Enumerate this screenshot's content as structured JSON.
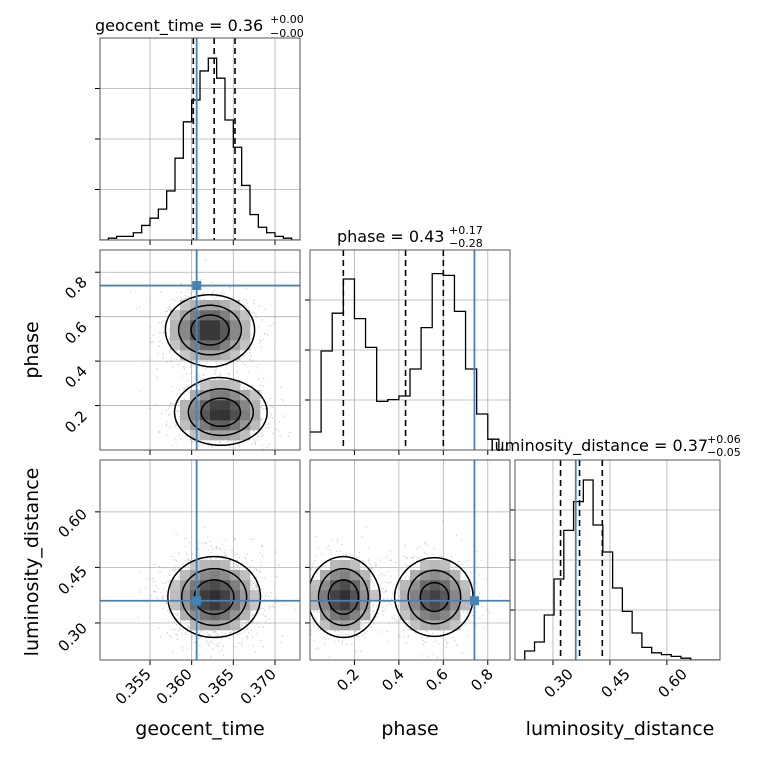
{
  "chart_data": {
    "type": "corner",
    "grid": true,
    "parameters": [
      {
        "name": "geocent_time",
        "title": {
          "main": "geocent_time = 0.36",
          "upper": "+0.00",
          "lower": "−0.00"
        },
        "xlabel": "geocent_time",
        "range": [
          0.349,
          0.373
        ],
        "ticks": [
          "0.355",
          "0.360",
          "0.365",
          "0.370"
        ],
        "tick_values": [
          0.355,
          0.36,
          0.365,
          0.37
        ],
        "median": 0.3627,
        "quantiles": [
          0.3602,
          0.3627,
          0.3652
        ],
        "injection": 0.3606,
        "hist_counts": [
          0.0,
          0.01,
          0.02,
          0.02,
          0.04,
          0.08,
          0.12,
          0.17,
          0.27,
          0.45,
          0.65,
          0.77,
          0.93,
          1.0,
          0.89,
          0.66,
          0.51,
          0.3,
          0.14,
          0.07,
          0.04,
          0.02,
          0.01,
          0.0
        ]
      },
      {
        "name": "phase",
        "title": {
          "main": "phase = 0.43",
          "upper": "+0.17",
          "lower": "−0.28"
        },
        "xlabel": "phase",
        "ylabel": "phase",
        "range": [
          0.0,
          0.9
        ],
        "ticks": [
          "0.2",
          "0.4",
          "0.6",
          "0.8"
        ],
        "tick_values": [
          0.2,
          0.4,
          0.6,
          0.8
        ],
        "median": 0.43,
        "quantiles": [
          0.15,
          0.43,
          0.6
        ],
        "injection": 0.74,
        "hist_counts": [
          0.1,
          0.55,
          0.76,
          0.95,
          0.73,
          0.57,
          0.27,
          0.28,
          0.3,
          0.45,
          0.68,
          0.98,
          0.97,
          0.77,
          0.45,
          0.2,
          0.06,
          0.0
        ]
      },
      {
        "name": "luminosity_distance",
        "title": {
          "main": "luminosity_distance = 0.37",
          "upper": "+0.06",
          "lower": "−0.05"
        },
        "xlabel": "luminosity_distance",
        "ylabel": "luminosity_distance",
        "range": [
          0.2,
          0.74
        ],
        "ticks": [
          "0.30",
          "0.45",
          "0.60"
        ],
        "tick_values": [
          0.3,
          0.45,
          0.6
        ],
        "median": 0.37,
        "quantiles": [
          0.32,
          0.37,
          0.43
        ],
        "injection": 0.36,
        "hist_counts": [
          0.0,
          0.05,
          0.1,
          0.25,
          0.45,
          0.72,
          0.88,
          1.0,
          0.75,
          0.6,
          0.4,
          0.27,
          0.15,
          0.07,
          0.04,
          0.03,
          0.02,
          0.01,
          0.0,
          0.0,
          0.0
        ]
      }
    ],
    "pairs": [
      {
        "x": "geocent_time",
        "y": "phase",
        "modes": [
          {
            "x": 0.3622,
            "y": 0.54,
            "sx": 0.0027,
            "sy": 0.08,
            "w": 1.0
          },
          {
            "x": 0.3635,
            "y": 0.17,
            "sx": 0.0028,
            "sy": 0.075,
            "w": 1.0
          }
        ]
      },
      {
        "x": "geocent_time",
        "y": "luminosity_distance",
        "modes": [
          {
            "x": 0.3627,
            "y": 0.37,
            "sx": 0.0028,
            "sy": 0.055,
            "w": 1.0
          }
        ]
      },
      {
        "x": "phase",
        "y": "luminosity_distance",
        "modes": [
          {
            "x": 0.15,
            "y": 0.37,
            "sx": 0.08,
            "sy": 0.055,
            "w": 1.0
          },
          {
            "x": 0.56,
            "y": 0.37,
            "sx": 0.09,
            "sy": 0.055,
            "w": 0.9
          }
        ]
      }
    ],
    "colors": {
      "injection": "#4682b4",
      "hist": "#000000",
      "grid": "#b0b0b0",
      "scatter": "#9a9a9a"
    }
  }
}
